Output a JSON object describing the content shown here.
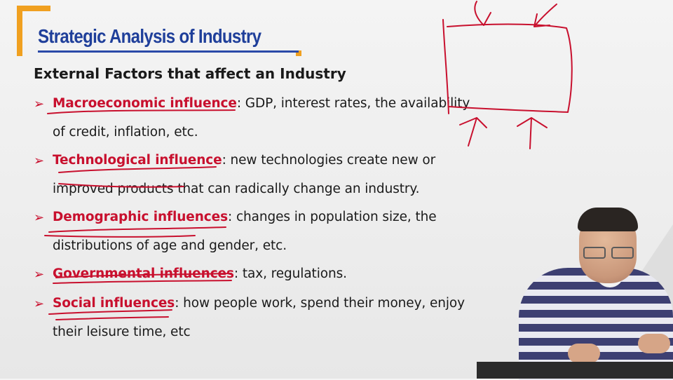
{
  "slide": {
    "title": "Strategic Analysis of Industry",
    "subtitle": "External Factors that affect an Industry",
    "bullet_glyph": "➢",
    "items": [
      {
        "keyword": "Macroeconomic influence",
        "text": ": GDP, interest rates, the availability",
        "continuation": "of credit, inflation, etc."
      },
      {
        "keyword": "Technological influence",
        "text": ": new technologies create new or",
        "continuation": "improved products that can radically change an industry."
      },
      {
        "keyword": "Demographic influences",
        "text": ": changes in population size, the",
        "continuation": "distributions of age and gender, etc."
      },
      {
        "keyword": "Governmental influences",
        "text": ": tax, regulations.",
        "continuation": ""
      },
      {
        "keyword": "Social influences",
        "text": ": how people work, spend their money, enjoy",
        "continuation": "their leisure time, etc"
      }
    ]
  },
  "colors": {
    "title": "#1f3f9a",
    "keyword": "#c8102e",
    "bracket": "#f0a020",
    "ink": "#c8102e"
  }
}
